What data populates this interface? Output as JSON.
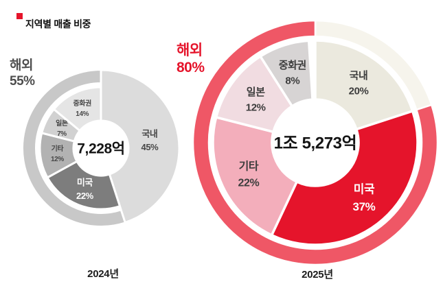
{
  "header": {
    "title": "지역별 매출 비중",
    "bullet_color": "#e5142b"
  },
  "chart_data": [
    {
      "type": "donut",
      "title": "2024년",
      "center_total": "7,228억",
      "callout": {
        "label": "해외",
        "value": "55%",
        "color": "#4d4d4d"
      },
      "start_angle_deg": 0,
      "direction": "clockwise",
      "slices": [
        {
          "name": "국내",
          "value": 45,
          "color": "#dcdcdc",
          "label_color": "#474747",
          "full_radius": true,
          "font_size": 13
        },
        {
          "name": "미국",
          "value": 22,
          "color": "#7d7d7d",
          "label_color": "#ffffff",
          "full_radius": false,
          "font_size": 13
        },
        {
          "name": "기타",
          "value": 12,
          "color": "#b2b2b2",
          "label_color": "#474747",
          "full_radius": false,
          "font_size": 10
        },
        {
          "name": "일본",
          "value": 7,
          "color": "#d1d1d1",
          "label_color": "#474747",
          "full_radius": false,
          "font_size": 10
        },
        {
          "name": "중화권",
          "value": 14,
          "color": "#e5e5e5",
          "label_color": "#474747",
          "full_radius": false,
          "font_size": 10
        }
      ],
      "outer_ring": {
        "overseas_label": "해외",
        "overseas_pct": 55,
        "overseas_color": "#c8c8c8",
        "domestic_color": null
      }
    },
    {
      "type": "donut",
      "title": "2025년",
      "center_total": "1조 5,273억",
      "callout": {
        "label": "해외",
        "value": "80%",
        "color": "#e5142b"
      },
      "start_angle_deg": 0,
      "direction": "clockwise",
      "slices": [
        {
          "name": "국내",
          "value": 20,
          "color": "#ebe9de",
          "label_color": "#3d3d3d",
          "full_radius": false,
          "font_size": 15
        },
        {
          "name": "미국",
          "value": 37,
          "color": "#e5142b",
          "label_color": "#ffffff",
          "full_radius": false,
          "font_size": 17
        },
        {
          "name": "기타",
          "value": 22,
          "color": "#f3aebb",
          "label_color": "#3d3d3d",
          "full_radius": false,
          "font_size": 16
        },
        {
          "name": "일본",
          "value": 12,
          "color": "#f1dce1",
          "label_color": "#3d3d3d",
          "full_radius": false,
          "font_size": 15
        },
        {
          "name": "중화권",
          "value": 8,
          "color": "#d7d4d4",
          "label_color": "#3d3d3d",
          "full_radius": false,
          "font_size": 15
        }
      ],
      "outer_ring": {
        "overseas_label": "해외",
        "overseas_pct": 80,
        "overseas_color": "#ef5766",
        "domestic_color": "#f6f4ec"
      }
    }
  ]
}
